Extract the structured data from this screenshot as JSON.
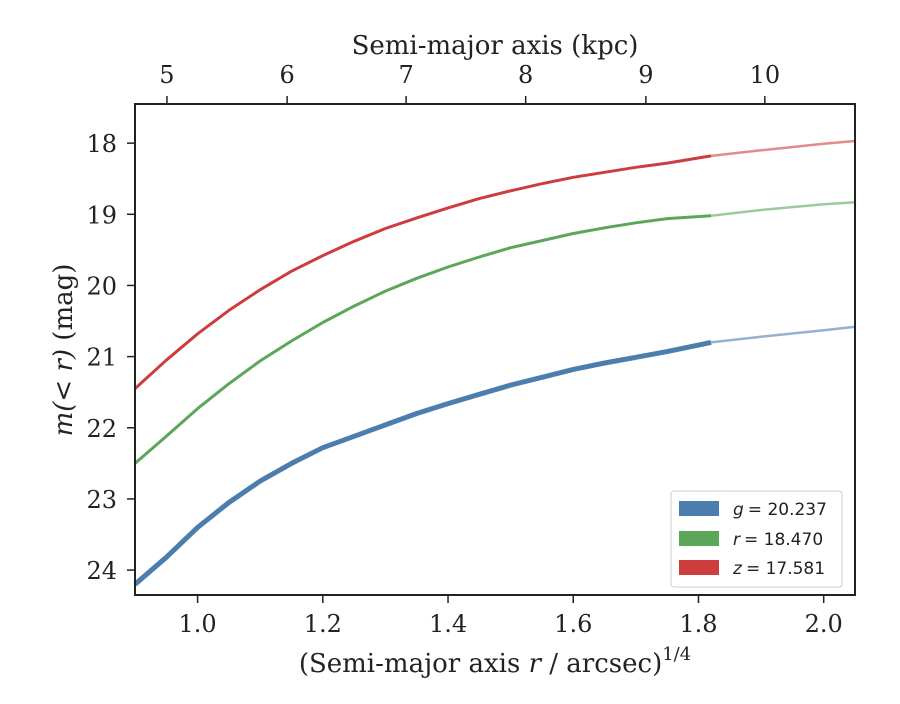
{
  "chart_data": {
    "type": "line",
    "xlabel": {
      "prefix": "(Semi-major axis ",
      "var": "r",
      "suffix": " / arcsec)",
      "sup": "1/4"
    },
    "ylabel": {
      "var": "m(< r)",
      "suffix": " (mag)"
    },
    "top_xlabel": "Semi-major axis (kpc)",
    "xlim": [
      0.9,
      2.05
    ],
    "ylim": [
      24.35,
      17.45
    ],
    "x_ticks": [
      1.0,
      1.2,
      1.4,
      1.6,
      1.8,
      2.0
    ],
    "x_tick_labels": [
      "1.0",
      "1.2",
      "1.4",
      "1.6",
      "1.8",
      "2.0"
    ],
    "y_ticks": [
      18,
      19,
      20,
      21,
      22,
      23,
      24
    ],
    "y_tick_labels": [
      "18",
      "19",
      "20",
      "21",
      "22",
      "23",
      "24"
    ],
    "top_ticks_x": [
      0.951,
      1.143,
      1.333,
      1.524,
      1.716,
      1.906
    ],
    "top_tick_labels": [
      "5",
      "6",
      "7",
      "8",
      "9",
      "10"
    ],
    "x_measured_end": 1.82,
    "legend_position": "lower-right",
    "grid": false,
    "series": [
      {
        "name": "g = 20.237",
        "legend_var": "g",
        "legend_value": "= 20.237",
        "color": "#4c7ead",
        "x": [
          0.9,
          0.95,
          1.0,
          1.05,
          1.1,
          1.15,
          1.2,
          1.25,
          1.3,
          1.35,
          1.4,
          1.45,
          1.5,
          1.55,
          1.6,
          1.65,
          1.7,
          1.75,
          1.82,
          1.9,
          2.0,
          2.05
        ],
        "y": [
          24.2,
          23.82,
          23.4,
          23.05,
          22.75,
          22.5,
          22.28,
          22.12,
          21.96,
          21.8,
          21.66,
          21.53,
          21.4,
          21.29,
          21.18,
          21.09,
          21.01,
          20.93,
          20.8,
          20.72,
          20.63,
          20.58
        ]
      },
      {
        "name": "r = 18.470",
        "legend_var": "r",
        "legend_value": "= 18.470",
        "color": "#5ba659",
        "x": [
          0.9,
          0.95,
          1.0,
          1.05,
          1.1,
          1.15,
          1.2,
          1.25,
          1.3,
          1.35,
          1.4,
          1.45,
          1.5,
          1.55,
          1.6,
          1.65,
          1.7,
          1.75,
          1.82,
          1.9,
          2.0,
          2.05
        ],
        "y": [
          22.5,
          22.12,
          21.73,
          21.38,
          21.06,
          20.78,
          20.52,
          20.29,
          20.08,
          19.9,
          19.74,
          19.6,
          19.47,
          19.37,
          19.27,
          19.19,
          19.12,
          19.06,
          19.02,
          18.94,
          18.86,
          18.83
        ]
      },
      {
        "name": "z = 17.581",
        "legend_var": "z",
        "legend_value": "= 17.581",
        "color": "#cd3d3e",
        "x": [
          0.9,
          0.95,
          1.0,
          1.05,
          1.1,
          1.15,
          1.2,
          1.25,
          1.3,
          1.35,
          1.4,
          1.45,
          1.5,
          1.55,
          1.6,
          1.65,
          1.7,
          1.75,
          1.82,
          1.9,
          2.0,
          2.05
        ],
        "y": [
          21.45,
          21.05,
          20.68,
          20.35,
          20.06,
          19.8,
          19.58,
          19.38,
          19.2,
          19.05,
          18.91,
          18.78,
          18.67,
          18.57,
          18.48,
          18.41,
          18.34,
          18.28,
          18.18,
          18.1,
          18.01,
          17.97
        ]
      }
    ]
  }
}
